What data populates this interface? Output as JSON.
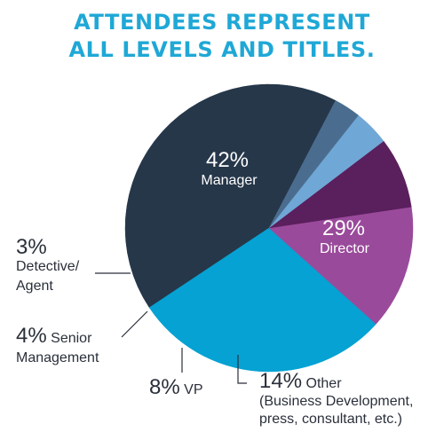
{
  "header": {
    "title_line1": "ATTENDEES REPRESENT",
    "title_line2": "ALL LEVELS AND TITLES."
  },
  "chart_data": {
    "type": "pie",
    "title": "ATTENDEES REPRESENT ALL LEVELS AND TITLES.",
    "slices": [
      {
        "label": "Manager",
        "value": 42,
        "display": "42%",
        "color": "#26374a",
        "text_lines": [
          "Manager"
        ]
      },
      {
        "label": "Director",
        "value": 29,
        "display": "29%",
        "color": "#05a2d3",
        "text_lines": [
          "Director"
        ]
      },
      {
        "label": "Other (Business Development, press, consultant, etc.)",
        "value": 14,
        "display": "14%",
        "color": "#9a4a9b",
        "text_lines": [
          "Other",
          "(Business Development,",
          "press, consultant, etc.)"
        ]
      },
      {
        "label": "VP",
        "value": 8,
        "display": "8%",
        "color": "#5a1f5d",
        "text_lines": [
          "VP"
        ]
      },
      {
        "label": "Senior Management",
        "value": 4,
        "display": "4%",
        "color": "#6fa7d6",
        "text_lines": [
          "Senior",
          "Management"
        ]
      },
      {
        "label": "Detective/ Agent",
        "value": 3,
        "display": "3%",
        "color": "#4a6d8f",
        "text_lines": [
          "Detective/",
          "Agent"
        ]
      }
    ]
  }
}
